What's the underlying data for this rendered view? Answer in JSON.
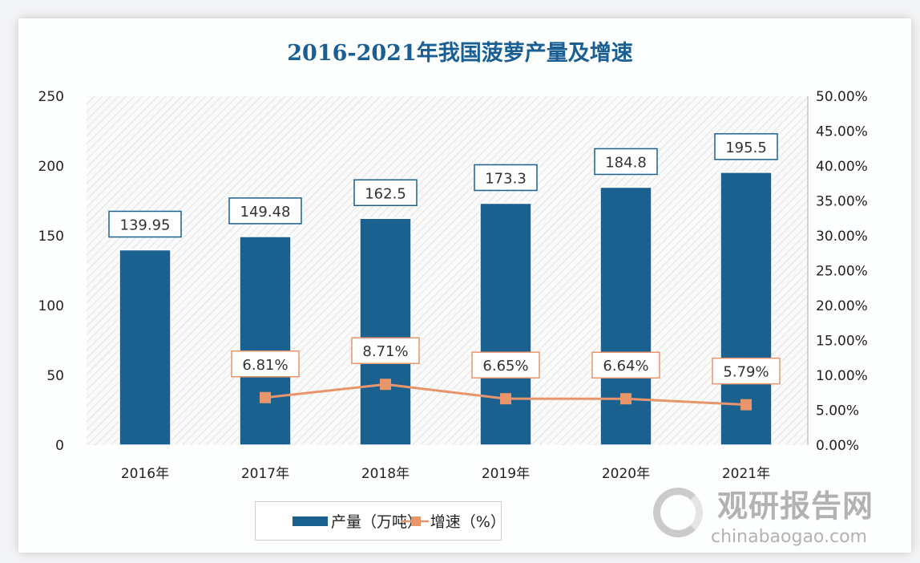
{
  "chart_data": {
    "type": "bar+line",
    "title": "2016-2021年我国菠萝产量及增速",
    "categories": [
      "2016年",
      "2017年",
      "2018年",
      "2019年",
      "2020年",
      "2021年"
    ],
    "series": [
      {
        "name": "产量（万吨）",
        "type": "bar",
        "axis": "left",
        "values": [
          139.95,
          149.48,
          162.5,
          173.3,
          184.8,
          195.5
        ],
        "labels": [
          "139.95",
          "149.48",
          "162.5",
          "173.3",
          "184.8",
          "195.5"
        ]
      },
      {
        "name": "增速（%）",
        "type": "line",
        "axis": "right",
        "values": [
          null,
          6.81,
          8.71,
          6.65,
          6.64,
          5.79
        ],
        "labels": [
          "",
          "6.81%",
          "8.71%",
          "6.65%",
          "6.64%",
          "5.79%"
        ]
      }
    ],
    "ylim": [
      0,
      250
    ],
    "yticks": [
      "0",
      "50",
      "100",
      "150",
      "200",
      "250"
    ],
    "y2lim": [
      0,
      50
    ],
    "y2ticks": [
      "0.00%",
      "5.00%",
      "10.00%",
      "15.00%",
      "20.00%",
      "25.00%",
      "30.00%",
      "35.00%",
      "40.00%",
      "45.00%",
      "50.00%"
    ],
    "legend": "bottom",
    "colors": {
      "bar": "#1a6190",
      "line": "#e8956b",
      "marker": "#e8956b"
    }
  },
  "watermark": {
    "cn": "观研报告网",
    "en": "chinabaogao.com"
  }
}
